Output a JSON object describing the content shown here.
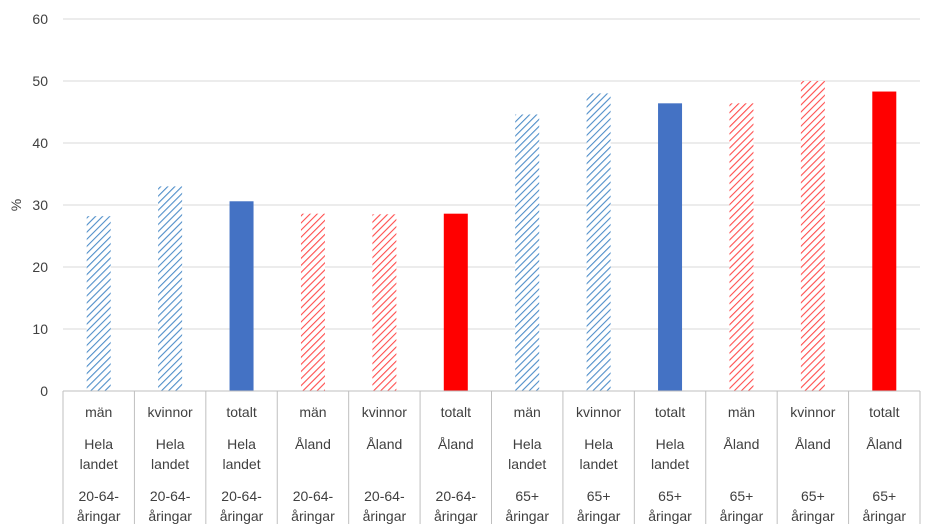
{
  "chart_data": {
    "type": "bar",
    "ylabel": "%",
    "ylim": [
      0,
      60
    ],
    "yticks": [
      0,
      10,
      20,
      30,
      40,
      50,
      60
    ],
    "grid": true,
    "categories": [
      {
        "row1": "män",
        "row2": [
          "Hela",
          "landet"
        ],
        "row3": [
          "20-64-",
          "åringar"
        ],
        "value": 28.2,
        "color": "#4f8ec9",
        "style": "hatched"
      },
      {
        "row1": "kvinnor",
        "row2": [
          "Hela",
          "landet"
        ],
        "row3": [
          "20-64-",
          "åringar"
        ],
        "value": 33.0,
        "color": "#4f8ec9",
        "style": "hatched"
      },
      {
        "row1": "totalt",
        "row2": [
          "Hela",
          "landet"
        ],
        "row3": [
          "20-64-",
          "åringar"
        ],
        "value": 30.6,
        "color": "#4472c4",
        "style": "solid"
      },
      {
        "row1": "män",
        "row2": [
          "Åland"
        ],
        "row3": [
          "20-64-",
          "åringar"
        ],
        "value": 28.6,
        "color": "#ff4d4d",
        "style": "hatched"
      },
      {
        "row1": "kvinnor",
        "row2": [
          "Åland"
        ],
        "row3": [
          "20-64-",
          "åringar"
        ],
        "value": 28.5,
        "color": "#ff4d4d",
        "style": "hatched"
      },
      {
        "row1": "totalt",
        "row2": [
          "Åland"
        ],
        "row3": [
          "20-64-",
          "åringar"
        ],
        "value": 28.6,
        "color": "#ff0000",
        "style": "solid"
      },
      {
        "row1": "män",
        "row2": [
          "Hela",
          "landet"
        ],
        "row3": [
          "65+",
          "åringar"
        ],
        "value": 44.6,
        "color": "#4f8ec9",
        "style": "hatched"
      },
      {
        "row1": "kvinnor",
        "row2": [
          "Hela",
          "landet"
        ],
        "row3": [
          "65+",
          "åringar"
        ],
        "value": 48.0,
        "color": "#4f8ec9",
        "style": "hatched"
      },
      {
        "row1": "totalt",
        "row2": [
          "Hela",
          "landet"
        ],
        "row3": [
          "65+",
          "åringar"
        ],
        "value": 46.4,
        "color": "#4472c4",
        "style": "solid"
      },
      {
        "row1": "män",
        "row2": [
          "Åland"
        ],
        "row3": [
          "65+",
          "åringar"
        ],
        "value": 46.4,
        "color": "#ff4d4d",
        "style": "hatched"
      },
      {
        "row1": "kvinnor",
        "row2": [
          "Åland"
        ],
        "row3": [
          "65+",
          "åringar"
        ],
        "value": 50.0,
        "color": "#ff4d4d",
        "style": "hatched"
      },
      {
        "row1": "totalt",
        "row2": [
          "Åland"
        ],
        "row3": [
          "65+",
          "åringar"
        ],
        "value": 48.3,
        "color": "#ff0000",
        "style": "solid"
      }
    ]
  }
}
